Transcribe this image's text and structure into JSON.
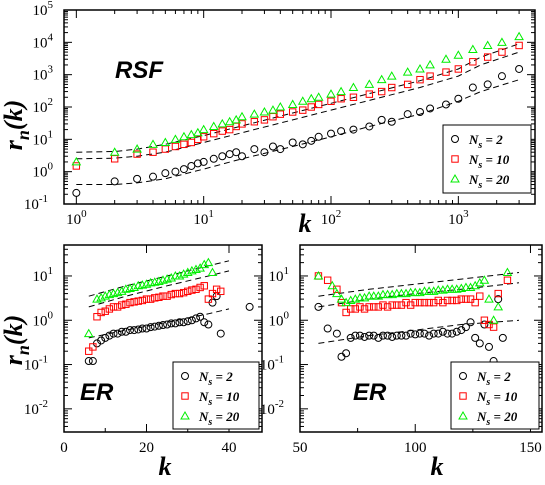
{
  "chart_data": [
    {
      "id": "top",
      "type": "scatter",
      "xscale": "log",
      "yscale": "log",
      "xlim": [
        0.8,
        4000
      ],
      "ylim": [
        0.1,
        100000
      ],
      "annotation": "RSF",
      "xlabel": "k",
      "ylabel": "r_n(k)",
      "xticks": [
        {
          "v": 1,
          "m": "0"
        },
        {
          "v": 10,
          "m": "1"
        },
        {
          "v": 100,
          "m": "2"
        },
        {
          "v": 1000,
          "m": "3"
        }
      ],
      "yticks": [
        {
          "v": 0.1,
          "m": "-1"
        },
        {
          "v": 1,
          "m": "0"
        },
        {
          "v": 10,
          "m": "1"
        },
        {
          "v": 100,
          "m": "2"
        },
        {
          "v": 1000,
          "m": "3"
        },
        {
          "v": 10000,
          "m": "4"
        },
        {
          "v": 100000,
          "m": "5"
        }
      ],
      "series": [
        {
          "name": "N_s = 2",
          "marker": "circle",
          "color": "#000000",
          "x": [
            1,
            2,
            3,
            4,
            5,
            6,
            7,
            8,
            9,
            10,
            12,
            14,
            16,
            18,
            20,
            25,
            30,
            35,
            40,
            50,
            60,
            70,
            80,
            100,
            120,
            150,
            200,
            250,
            300,
            400,
            500,
            600,
            800,
            1000,
            1300,
            1700,
            2200,
            3000
          ],
          "y": [
            0.22,
            0.5,
            0.6,
            0.7,
            0.9,
            1.0,
            1.2,
            1.5,
            1.8,
            2.0,
            2.5,
            3,
            3.5,
            4,
            3,
            5,
            4,
            6,
            5,
            8,
            7,
            9,
            12,
            15,
            18,
            20,
            25,
            40,
            35,
            60,
            70,
            90,
            120,
            180,
            400,
            500,
            900,
            1500
          ]
        },
        {
          "name": "N_s = 10",
          "marker": "square",
          "color": "#ff0000",
          "x": [
            1,
            2,
            3,
            4,
            5,
            6,
            7,
            8,
            9,
            10,
            12,
            14,
            16,
            18,
            20,
            25,
            30,
            35,
            40,
            50,
            60,
            70,
            80,
            100,
            120,
            150,
            200,
            250,
            300,
            400,
            500,
            600,
            800,
            1000,
            1300,
            1700,
            2200,
            3000
          ],
          "y": [
            1.5,
            2.5,
            3.5,
            4,
            5,
            6,
            7,
            8,
            10,
            12,
            15,
            18,
            20,
            25,
            30,
            35,
            40,
            50,
            60,
            70,
            80,
            100,
            120,
            150,
            180,
            200,
            250,
            300,
            400,
            500,
            700,
            900,
            1200,
            1500,
            2500,
            3500,
            5000,
            8000
          ]
        },
        {
          "name": "N_s = 20",
          "marker": "triangle",
          "color": "#00ee00",
          "x": [
            1,
            2,
            3,
            4,
            5,
            6,
            7,
            8,
            9,
            10,
            12,
            14,
            16,
            18,
            20,
            25,
            30,
            35,
            40,
            50,
            60,
            70,
            80,
            100,
            120,
            150,
            200,
            250,
            300,
            400,
            500,
            600,
            800,
            1000,
            1300,
            1700,
            2200,
            3000
          ],
          "y": [
            2,
            4,
            5,
            7,
            8,
            10,
            12,
            14,
            16,
            20,
            25,
            30,
            35,
            40,
            50,
            60,
            70,
            80,
            100,
            120,
            150,
            180,
            200,
            250,
            300,
            400,
            500,
            700,
            900,
            1200,
            1500,
            2000,
            3000,
            4000,
            6000,
            8000,
            10000,
            15000
          ]
        }
      ],
      "bands": [
        {
          "x": [
            1,
            2,
            3,
            5,
            10,
            20,
            50,
            100,
            200,
            500,
            1000,
            1500,
            3000
          ],
          "y": [
            0.4,
            0.4,
            0.45,
            0.6,
            1.2,
            2.5,
            6,
            12,
            25,
            60,
            150,
            300,
            700
          ]
        },
        {
          "x": [
            1,
            2,
            3,
            5,
            10,
            20,
            50,
            100,
            200,
            500,
            1000,
            1500,
            3000
          ],
          "y": [
            2.5,
            2.6,
            3,
            4,
            8,
            16,
            40,
            80,
            160,
            400,
            900,
            2000,
            5000
          ]
        },
        {
          "x": [
            1,
            2,
            3,
            5,
            10,
            20,
            50,
            100,
            200,
            500,
            1000,
            1500,
            3000
          ],
          "y": [
            4,
            4.2,
            5,
            7,
            13,
            26,
            65,
            130,
            260,
            650,
            1500,
            3500,
            9000
          ]
        }
      ]
    },
    {
      "id": "bottom-left",
      "type": "scatter",
      "xscale": "linear",
      "yscale": "log",
      "xlim": [
        0,
        48
      ],
      "ylim": [
        0.003,
        50
      ],
      "annotation": "ER",
      "xlabel": "k",
      "ylabel": "r_n(k)",
      "xticks": [
        {
          "v": 0,
          "t": "0"
        },
        {
          "v": 20,
          "t": "20"
        },
        {
          "v": 40,
          "t": "40"
        }
      ],
      "yticks": [
        {
          "v": 0.01,
          "m": "-2"
        },
        {
          "v": 0.1,
          "m": "-1"
        },
        {
          "v": 1,
          "m": "0"
        },
        {
          "v": 10,
          "m": "1"
        }
      ],
      "series": [
        {
          "name": "N_s = 2",
          "marker": "circle",
          "color": "#000000",
          "x": [
            6,
            7,
            8,
            9,
            10,
            11,
            12,
            13,
            14,
            15,
            16,
            17,
            18,
            19,
            20,
            21,
            22,
            23,
            24,
            25,
            26,
            27,
            28,
            29,
            30,
            31,
            32,
            33,
            34,
            35,
            36,
            37,
            38,
            45
          ],
          "y": [
            0.12,
            0.12,
            0.3,
            0.35,
            0.4,
            0.45,
            0.5,
            0.5,
            0.55,
            0.55,
            0.6,
            0.6,
            0.62,
            0.65,
            0.65,
            0.7,
            0.72,
            0.75,
            0.78,
            0.8,
            0.85,
            0.85,
            0.9,
            0.9,
            0.95,
            1.0,
            1.1,
            1.2,
            0.9,
            0.8,
            2.5,
            3.5,
            0.5,
            2.0
          ]
        },
        {
          "name": "N_s = 10",
          "marker": "square",
          "color": "#ff0000",
          "x": [
            6,
            7,
            8,
            9,
            10,
            11,
            12,
            13,
            14,
            15,
            16,
            17,
            18,
            19,
            20,
            21,
            22,
            23,
            24,
            25,
            26,
            27,
            28,
            29,
            30,
            31,
            32,
            33,
            34,
            35,
            36,
            37,
            38
          ],
          "y": [
            0.2,
            0.25,
            1.2,
            1.5,
            1.6,
            1.8,
            2.0,
            2.0,
            2.2,
            2.3,
            2.5,
            2.6,
            2.7,
            2.8,
            3.0,
            3.0,
            3.2,
            3.3,
            3.5,
            3.5,
            3.8,
            4.0,
            4.0,
            4.2,
            4.5,
            4.8,
            5.0,
            5.5,
            6.0,
            3.0,
            4.0,
            5.0,
            4.5
          ]
        },
        {
          "name": "N_s = 20",
          "marker": "triangle",
          "color": "#00ee00",
          "x": [
            6,
            8,
            9,
            10,
            11,
            12,
            13,
            14,
            15,
            16,
            17,
            18,
            19,
            20,
            21,
            22,
            23,
            24,
            25,
            26,
            27,
            28,
            29,
            30,
            31,
            32,
            33,
            34,
            35,
            36
          ],
          "y": [
            0.5,
            3.0,
            3.2,
            3.5,
            3.8,
            4.0,
            4.2,
            4.5,
            5,
            5.2,
            5.5,
            6,
            6.2,
            6.5,
            7,
            7.2,
            7.5,
            8,
            8.5,
            9,
            10,
            10,
            11,
            12,
            13,
            14,
            15,
            18,
            20,
            12
          ]
        }
      ],
      "bands": [
        {
          "x": [
            6,
            15,
            25,
            35,
            40
          ],
          "y": [
            0.4,
            0.6,
            0.9,
            1.4,
            1.8
          ]
        },
        {
          "x": [
            6,
            15,
            25,
            35,
            40
          ],
          "y": [
            2.0,
            3.5,
            6,
            10,
            13
          ]
        },
        {
          "x": [
            6,
            15,
            25,
            35,
            40
          ],
          "y": [
            3.5,
            6,
            10,
            17,
            22
          ]
        }
      ]
    },
    {
      "id": "bottom-right",
      "type": "scatter",
      "xscale": "linear",
      "yscale": "log",
      "xlim": [
        50,
        155
      ],
      "ylim": [
        0.003,
        50
      ],
      "annotation": "ER",
      "xlabel": "k",
      "ylabel": "",
      "xticks": [
        {
          "v": 50,
          "t": "50"
        },
        {
          "v": 100,
          "t": "100"
        },
        {
          "v": 150,
          "t": "150"
        }
      ],
      "yticks": [
        {
          "v": 0.01,
          "m": "-2"
        },
        {
          "v": 0.1,
          "m": "-1"
        },
        {
          "v": 1,
          "m": "0"
        },
        {
          "v": 10,
          "m": "1"
        }
      ],
      "series": [
        {
          "name": "N_s = 2",
          "marker": "circle",
          "color": "#000000",
          "x": [
            58,
            62,
            66,
            68,
            70,
            72,
            74,
            76,
            78,
            80,
            82,
            84,
            86,
            88,
            90,
            92,
            94,
            96,
            98,
            100,
            102,
            104,
            106,
            108,
            110,
            112,
            114,
            116,
            118,
            120,
            122,
            124,
            126,
            128,
            130,
            132,
            134,
            136,
            138
          ],
          "y": [
            2.0,
            0.65,
            0.5,
            0.15,
            0.18,
            0.4,
            0.45,
            0.45,
            0.42,
            0.45,
            0.45,
            0.4,
            0.45,
            0.45,
            0.42,
            0.45,
            0.45,
            0.45,
            0.5,
            0.48,
            0.5,
            0.5,
            0.45,
            0.5,
            0.5,
            0.55,
            0.5,
            0.5,
            0.55,
            0.6,
            0.7,
            0.9,
            0.4,
            0.3,
            0.8,
            0.25,
            0.12,
            3.0,
            0.4
          ]
        },
        {
          "name": "N_s = 10",
          "marker": "square",
          "color": "#ff0000",
          "x": [
            58,
            62,
            66,
            68,
            70,
            72,
            74,
            76,
            78,
            80,
            82,
            84,
            86,
            88,
            90,
            92,
            94,
            96,
            98,
            100,
            102,
            104,
            106,
            108,
            110,
            112,
            114,
            116,
            118,
            120,
            122,
            124,
            126,
            128,
            130,
            132,
            134,
            136,
            140
          ],
          "y": [
            10,
            8,
            5,
            2.5,
            1.5,
            1.8,
            1.8,
            2.0,
            1.8,
            2.0,
            2.0,
            2.0,
            2.2,
            2.0,
            2.2,
            2.2,
            2.2,
            2.5,
            2.2,
            2.5,
            2.5,
            2.5,
            2.5,
            2.5,
            2.8,
            2.5,
            2.8,
            2.8,
            2.8,
            3.0,
            3.0,
            3.0,
            2.5,
            3.5,
            1.0,
            0.8,
            0.7,
            4.0,
            8.0
          ]
        },
        {
          "name": "N_s = 20",
          "marker": "triangle",
          "color": "#00ee00",
          "x": [
            58,
            64,
            66,
            68,
            70,
            72,
            74,
            76,
            78,
            80,
            82,
            84,
            86,
            88,
            90,
            92,
            94,
            96,
            98,
            100,
            102,
            104,
            106,
            108,
            110,
            112,
            114,
            116,
            118,
            120,
            122,
            124,
            126,
            128,
            130,
            132,
            134,
            136,
            140
          ],
          "y": [
            10,
            6,
            4,
            3.0,
            2.5,
            2.8,
            3.0,
            3.2,
            3.2,
            3.5,
            3.5,
            3.5,
            3.8,
            3.8,
            3.8,
            4.0,
            4.0,
            4.0,
            4.2,
            4.2,
            4.2,
            4.5,
            4.5,
            4.5,
            4.8,
            4.8,
            5,
            5,
            5,
            5.2,
            5.5,
            5.5,
            6,
            7,
            8,
            3.0,
            1.0,
            2.0,
            12
          ]
        }
      ],
      "bands": [
        {
          "x": [
            58,
            80,
            100,
            120,
            145
          ],
          "y": [
            0.3,
            0.45,
            0.6,
            0.8,
            1.0
          ]
        },
        {
          "x": [
            58,
            80,
            100,
            120,
            145
          ],
          "y": [
            2.0,
            3.0,
            4.0,
            5.0,
            7.0
          ]
        },
        {
          "x": [
            58,
            80,
            100,
            120,
            145
          ],
          "y": [
            3.5,
            5.0,
            6.5,
            8.5,
            12
          ]
        }
      ]
    }
  ],
  "legend": {
    "entries": [
      {
        "marker": "circle",
        "color": "#000000",
        "label_main": "N",
        "label_sub": "s",
        "label_rest": " = 2"
      },
      {
        "marker": "square",
        "color": "#ff0000",
        "label_main": "N",
        "label_sub": "s",
        "label_rest": " = 10"
      },
      {
        "marker": "triangle",
        "color": "#00ee00",
        "label_main": "N",
        "label_sub": "s",
        "label_rest": " = 20"
      }
    ]
  }
}
